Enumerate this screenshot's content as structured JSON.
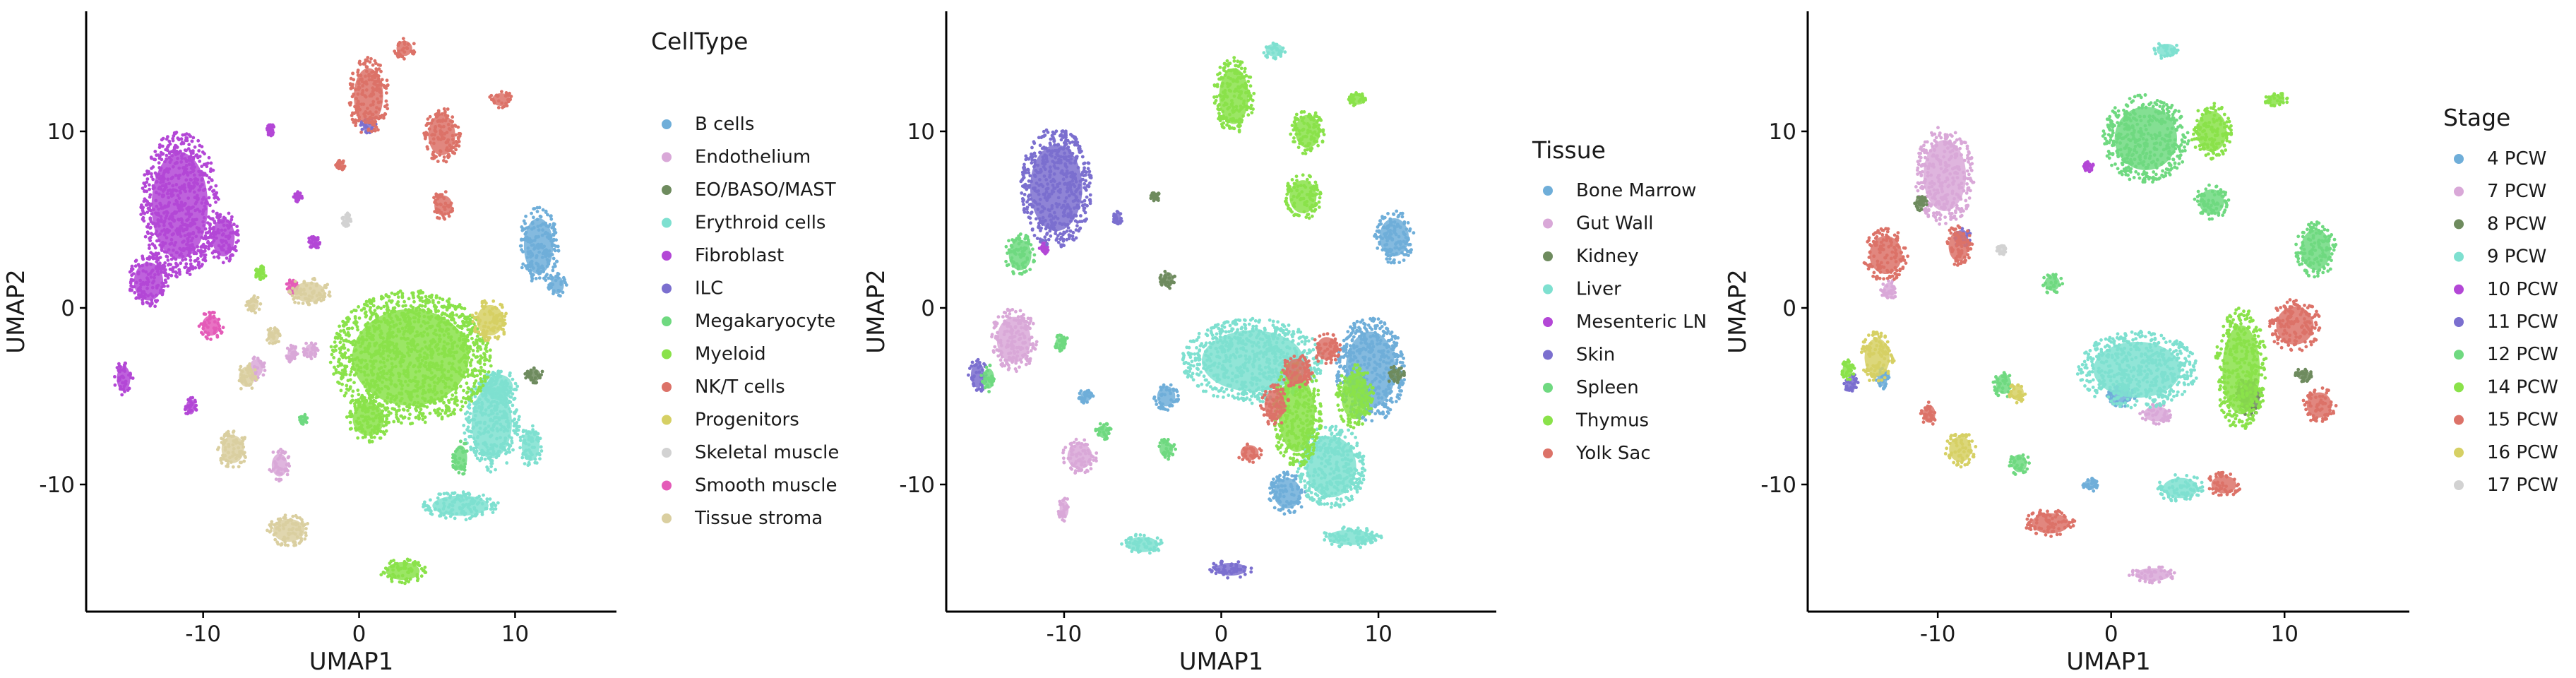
{
  "chart_data": [
    {
      "type": "scatter",
      "xlabel": "UMAP1",
      "ylabel": "UMAP2",
      "xlim": [
        -17.5,
        16.5
      ],
      "ylim": [
        -17.2,
        16.8
      ],
      "xticks": [
        -10,
        0,
        10
      ],
      "yticks": [
        -10,
        0,
        10
      ],
      "grid": false,
      "legend_title": "CellType",
      "legend_position": "right",
      "series": [
        {
          "name": "B cells",
          "color": "#6FAED9",
          "clusters": [
            [
              11.5,
              3.5,
              1.3,
              2.2
            ],
            [
              12.7,
              1.3,
              0.6,
              0.7
            ]
          ]
        },
        {
          "name": "Endothelium",
          "color": "#D9A8D8",
          "clusters": [
            [
              -5.1,
              -8.9,
              0.7,
              0.9
            ],
            [
              -3.1,
              -2.4,
              0.5,
              0.5
            ],
            [
              -4.3,
              -2.6,
              0.4,
              0.5
            ],
            [
              -6.6,
              -3.4,
              0.6,
              0.7
            ]
          ]
        },
        {
          "name": "EO/BASO/MAST",
          "color": "#6E8B5E",
          "clusters": [
            [
              11.2,
              -3.8,
              0.6,
              0.5
            ]
          ]
        },
        {
          "name": "Erythroid cells",
          "color": "#7EE0D0",
          "clusters": [
            [
              8.5,
              -6.5,
              1.8,
              2.8
            ],
            [
              6.5,
              -11.2,
              2.5,
              0.8
            ],
            [
              9.0,
              -4.5,
              1.2,
              1.0
            ],
            [
              11.0,
              -7.8,
              0.8,
              1.2
            ]
          ]
        },
        {
          "name": "Fibroblast",
          "color": "#B347D6",
          "clusters": [
            [
              -11.5,
              5.8,
              2.5,
              4.2
            ],
            [
              -13.5,
              1.5,
              1.3,
              1.5
            ],
            [
              -15.1,
              -4.0,
              0.6,
              1.0
            ],
            [
              -8.7,
              4.0,
              1.0,
              1.5
            ],
            [
              -5.7,
              10.1,
              0.3,
              0.4
            ],
            [
              -10.8,
              -5.6,
              0.4,
              0.6
            ],
            [
              -3.9,
              6.3,
              0.3,
              0.3
            ],
            [
              -2.9,
              3.7,
              0.4,
              0.4
            ]
          ]
        },
        {
          "name": "ILC",
          "color": "#7B6FCF",
          "clusters": [
            [
              0.6,
              10.3,
              0.5,
              0.5
            ]
          ]
        },
        {
          "name": "Megakaryocyte",
          "color": "#6FD980",
          "clusters": [
            [
              6.5,
              -8.5,
              0.6,
              1.0
            ],
            [
              -3.6,
              -6.3,
              0.3,
              0.3
            ]
          ]
        },
        {
          "name": "Myeloid",
          "color": "#8AE24A",
          "clusters": [
            [
              3.3,
              -2.8,
              5.2,
              3.8
            ],
            [
              0.6,
              -6.3,
              1.4,
              1.3
            ],
            [
              2.8,
              -14.9,
              1.5,
              0.7
            ],
            [
              -6.3,
              2.0,
              0.4,
              0.4
            ]
          ]
        },
        {
          "name": "NK/T cells",
          "color": "#DC7268",
          "clusters": [
            [
              0.6,
              12.0,
              1.3,
              2.2
            ],
            [
              2.9,
              14.7,
              0.7,
              0.6
            ],
            [
              5.3,
              9.8,
              1.2,
              1.6
            ],
            [
              9.1,
              11.8,
              0.8,
              0.5
            ],
            [
              5.4,
              5.8,
              0.8,
              0.8
            ],
            [
              -1.2,
              8.1,
              0.3,
              0.3
            ]
          ]
        },
        {
          "name": "Progenitors",
          "color": "#D6D064",
          "clusters": [
            [
              8.4,
              -0.7,
              1.2,
              1.2
            ]
          ]
        },
        {
          "name": "Skeletal muscle",
          "color": "#D2D2D2",
          "clusters": [
            [
              -0.8,
              5.0,
              0.3,
              0.4
            ]
          ]
        },
        {
          "name": "Smooth muscle",
          "color": "#E45BB8",
          "clusters": [
            [
              -9.5,
              -1.0,
              0.8,
              0.8
            ],
            [
              -4.3,
              1.2,
              0.4,
              0.4
            ]
          ]
        },
        {
          "name": "Tissue stroma",
          "color": "#DACFA0",
          "clusters": [
            [
              -8.1,
              -8.0,
              1.0,
              1.1
            ],
            [
              -7.2,
              -3.9,
              0.7,
              0.8
            ],
            [
              -4.5,
              -12.6,
              1.4,
              0.9
            ],
            [
              -3.2,
              0.9,
              1.4,
              0.8
            ],
            [
              -6.8,
              0.2,
              0.5,
              0.5
            ],
            [
              -5.5,
              -1.6,
              0.5,
              0.5
            ]
          ]
        }
      ]
    },
    {
      "type": "scatter",
      "xlabel": "UMAP1",
      "ylabel": "UMAP2",
      "xlim": [
        -17.5,
        17.5
      ],
      "ylim": [
        -17.2,
        16.8
      ],
      "xticks": [
        -10,
        0,
        10
      ],
      "yticks": [
        -10,
        0,
        10
      ],
      "grid": false,
      "legend_title": "Tissue",
      "legend_position": "right",
      "series": [
        {
          "name": "Bone Marrow",
          "color": "#6FAED9",
          "clusters": [
            [
              9.5,
              -3.5,
              2.2,
              3.0
            ],
            [
              11.0,
              4.0,
              1.3,
              1.5
            ],
            [
              4.2,
              -10.5,
              1.2,
              1.2
            ],
            [
              -3.5,
              -5.0,
              0.8,
              0.8
            ],
            [
              -8.6,
              -5.0,
              0.5,
              0.4
            ]
          ]
        },
        {
          "name": "Gut Wall",
          "color": "#D9A8D8",
          "clusters": [
            [
              -13.2,
              -1.8,
              1.5,
              1.8
            ],
            [
              -9.0,
              -8.4,
              1.1,
              1.0
            ],
            [
              -10.0,
              -11.4,
              0.4,
              0.7
            ]
          ]
        },
        {
          "name": "Kidney",
          "color": "#6E8B5E",
          "clusters": [
            [
              -3.4,
              1.6,
              0.5,
              0.6
            ],
            [
              -4.2,
              6.3,
              0.3,
              0.3
            ],
            [
              11.1,
              -3.8,
              0.6,
              0.5
            ]
          ]
        },
        {
          "name": "Liver",
          "color": "#7EE0D0",
          "clusters": [
            [
              2.0,
              -3.0,
              4.5,
              2.4
            ],
            [
              7.0,
              -9.0,
              2.2,
              2.4
            ],
            [
              8.2,
              -13.0,
              2.0,
              0.6
            ],
            [
              3.4,
              14.6,
              0.8,
              0.5
            ],
            [
              -5.0,
              -13.4,
              1.4,
              0.6
            ]
          ]
        },
        {
          "name": "Mesenteric LN",
          "color": "#B347D6",
          "clusters": [
            [
              -11.3,
              3.4,
              0.3,
              0.4
            ]
          ]
        },
        {
          "name": "Skin",
          "color": "#7B6FCF",
          "clusters": [
            [
              -10.5,
              6.8,
              2.3,
              3.4
            ],
            [
              -15.5,
              -3.8,
              0.6,
              1.0
            ],
            [
              0.6,
              -14.8,
              1.4,
              0.5
            ],
            [
              -6.6,
              5.1,
              0.3,
              0.4
            ]
          ]
        },
        {
          "name": "Spleen",
          "color": "#6FD980",
          "clusters": [
            [
              -12.8,
              3.0,
              1.0,
              1.2
            ],
            [
              -14.8,
              -4.0,
              0.5,
              0.8
            ],
            [
              -3.5,
              -8.0,
              0.6,
              0.6
            ],
            [
              -10.2,
              -2.0,
              0.5,
              0.5
            ],
            [
              -7.5,
              -7.0,
              0.5,
              0.5
            ]
          ]
        },
        {
          "name": "Thymus",
          "color": "#8AE24A",
          "clusters": [
            [
              0.8,
              12.0,
              1.3,
              2.2
            ],
            [
              5.5,
              10.0,
              1.1,
              1.3
            ],
            [
              5.2,
              6.3,
              1.2,
              1.3
            ],
            [
              8.7,
              11.8,
              0.6,
              0.4
            ],
            [
              4.8,
              -6.0,
              1.6,
              3.0
            ],
            [
              8.5,
              -5.0,
              1.2,
              1.8
            ]
          ]
        },
        {
          "name": "Yolk Sac",
          "color": "#DC7268",
          "clusters": [
            [
              3.4,
              -5.5,
              0.9,
              1.2
            ],
            [
              1.8,
              -8.2,
              0.8,
              0.6
            ],
            [
              4.8,
              -3.6,
              1.0,
              1.0
            ],
            [
              6.7,
              -2.3,
              0.9,
              0.9
            ]
          ]
        }
      ]
    },
    {
      "type": "scatter",
      "xlabel": "UMAP1",
      "ylabel": "UMAP2",
      "xlim": [
        -17.5,
        17.2
      ],
      "ylim": [
        -17.2,
        16.8
      ],
      "xticks": [
        -10,
        0,
        10
      ],
      "yticks": [
        -10,
        0,
        10
      ],
      "grid": false,
      "legend_title": "Stage",
      "legend_position": "right",
      "series": [
        {
          "name": "4 PCW",
          "color": "#6FAED9",
          "clusters": [
            [
              0.5,
              -5.0,
              1.0,
              0.6
            ],
            [
              -1.2,
              -10.0,
              0.5,
              0.4
            ],
            [
              -13.2,
              -4.0,
              0.4,
              0.6
            ]
          ]
        },
        {
          "name": "7 PCW",
          "color": "#D9A8D8",
          "clusters": [
            [
              -9.6,
              7.5,
              1.7,
              2.8
            ],
            [
              2.4,
              -15.1,
              1.4,
              0.5
            ],
            [
              -12.8,
              1.0,
              0.5,
              0.6
            ],
            [
              2.6,
              -6.0,
              1.0,
              0.6
            ]
          ]
        },
        {
          "name": "8 PCW",
          "color": "#6E8B5E",
          "clusters": [
            [
              8.0,
              -5.0,
              0.8,
              1.2
            ],
            [
              -11.0,
              6.0,
              0.4,
              0.5
            ],
            [
              11.1,
              -3.8,
              0.5,
              0.4
            ]
          ]
        },
        {
          "name": "9 PCW",
          "color": "#7EE0D0",
          "clusters": [
            [
              3.2,
              14.6,
              0.8,
              0.5
            ],
            [
              1.5,
              -3.5,
              3.5,
              2.2
            ],
            [
              4.0,
              -10.2,
              1.4,
              0.8
            ]
          ]
        },
        {
          "name": "10 PCW",
          "color": "#B347D6",
          "clusters": [
            [
              -1.3,
              8.0,
              0.3,
              0.3
            ]
          ]
        },
        {
          "name": "11 PCW",
          "color": "#7B6FCF",
          "clusters": [
            [
              -8.6,
              4.0,
              0.5,
              0.6
            ],
            [
              -15.0,
              -4.3,
              0.4,
              0.6
            ]
          ]
        },
        {
          "name": "12 PCW",
          "color": "#6FD980",
          "clusters": [
            [
              2.0,
              9.6,
              2.5,
              2.5
            ],
            [
              5.8,
              6.0,
              1.0,
              1.0
            ],
            [
              -6.2,
              -4.3,
              0.6,
              0.8
            ],
            [
              -3.4,
              1.4,
              0.6,
              0.6
            ],
            [
              -5.3,
              -8.8,
              0.6,
              0.7
            ],
            [
              11.8,
              3.3,
              1.2,
              1.6
            ]
          ]
        },
        {
          "name": "14 PCW",
          "color": "#8AE24A",
          "clusters": [
            [
              9.5,
              11.8,
              0.7,
              0.4
            ],
            [
              5.8,
              10.0,
              1.2,
              1.6
            ],
            [
              7.5,
              -3.5,
              1.5,
              3.5
            ],
            [
              -15.2,
              -3.5,
              0.4,
              0.6
            ]
          ]
        },
        {
          "name": "15 PCW",
          "color": "#DC7268",
          "clusters": [
            [
              -13.0,
              3.0,
              1.3,
              1.5
            ],
            [
              -8.8,
              3.5,
              0.8,
              1.2
            ],
            [
              10.6,
              -1.0,
              1.5,
              1.5
            ],
            [
              6.5,
              -10.0,
              1.0,
              0.7
            ],
            [
              12.0,
              -5.5,
              1.0,
              1.0
            ],
            [
              -3.5,
              -12.2,
              1.5,
              0.8
            ],
            [
              -10.5,
              -6.0,
              0.5,
              0.7
            ]
          ]
        },
        {
          "name": "16 PCW",
          "color": "#D6D064",
          "clusters": [
            [
              -13.5,
              -2.8,
              1.0,
              1.5
            ],
            [
              -8.7,
              -8.0,
              0.9,
              1.0
            ],
            [
              -5.4,
              -4.8,
              0.5,
              0.6
            ]
          ]
        },
        {
          "name": "17 PCW",
          "color": "#D2D2D2",
          "clusters": [
            [
              -6.3,
              3.3,
              0.3,
              0.3
            ]
          ]
        }
      ]
    }
  ]
}
